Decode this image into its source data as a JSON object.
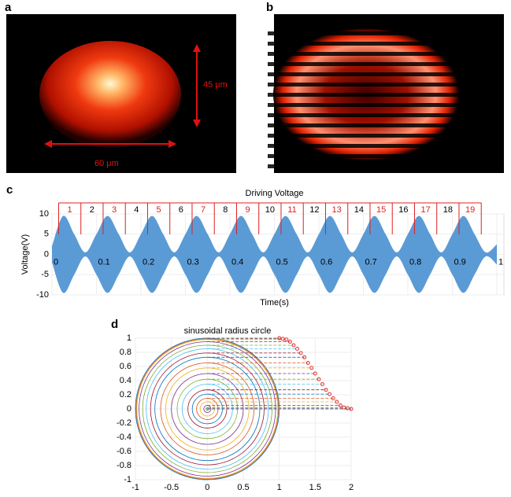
{
  "panels": {
    "a": {
      "label": "a",
      "height_label": "45 μm",
      "width_label": "60 μm"
    },
    "b": {
      "label": "b"
    }
  },
  "chart_data": [
    {
      "panel": "c",
      "type": "area",
      "title": "Driving Voltage",
      "xlabel": "Time(s)",
      "ylabel": "Voltage(V)",
      "x": [
        0,
        0.025,
        0.05,
        0.075,
        0.1,
        0.125,
        0.15,
        0.175,
        0.2,
        0.225,
        0.25,
        0.275,
        0.3,
        0.325,
        0.35,
        0.375,
        0.4,
        0.425,
        0.45,
        0.475,
        0.5,
        0.525,
        0.55,
        0.575,
        0.6,
        0.625,
        0.65,
        0.675,
        0.7,
        0.725,
        0.75,
        0.775,
        0.8,
        0.825,
        0.85,
        0.875,
        0.9,
        0.925,
        0.95,
        0.975,
        1
      ],
      "values": [
        2,
        9.5,
        5,
        0.5,
        5,
        9.5,
        5,
        0.5,
        5,
        9.5,
        5,
        0.5,
        5,
        9.5,
        5,
        0.5,
        5,
        9.5,
        5,
        0.5,
        5,
        9.5,
        5,
        0.5,
        5,
        9.5,
        5,
        0.5,
        5,
        9.5,
        5,
        0.5,
        5,
        9.5,
        5,
        0.5,
        5,
        9.5,
        5,
        0.5,
        2.5
      ],
      "color": "#5b9bd5",
      "xlim": [
        0,
        1
      ],
      "ylim": [
        -10,
        10
      ],
      "xticks": [
        0,
        0.1,
        0.2,
        0.3,
        0.4,
        0.5,
        0.6,
        0.7,
        0.8,
        0.9,
        1
      ],
      "yticks": [
        10,
        5,
        0,
        -5,
        -10
      ],
      "grid": true,
      "pulse_labels": [
        "1",
        "2",
        "3",
        "4",
        "5",
        "6",
        "7",
        "8",
        "9",
        "10",
        "11",
        "12",
        "13",
        "14",
        "15",
        "16",
        "17",
        "18",
        "19"
      ],
      "pulse_edges": [
        0.015,
        0.065,
        0.115,
        0.165,
        0.215,
        0.265,
        0.315,
        0.365,
        0.415,
        0.465,
        0.515,
        0.565,
        0.615,
        0.665,
        0.715,
        0.765,
        0.815,
        0.865,
        0.915,
        0.965
      ],
      "pulse_colors": [
        "#e02020",
        "#000000"
      ],
      "bracket_color": "#e02020"
    },
    {
      "panel": "d",
      "type": "circles",
      "title": "sinusoidal radius circle",
      "x": [
        1,
        1.05,
        1.1,
        1.15,
        1.2,
        1.25,
        1.3,
        1.35,
        1.4,
        1.45,
        1.5,
        1.55,
        1.6,
        1.65,
        1.7,
        1.75,
        1.8,
        1.85,
        1.9,
        1.95,
        2
      ],
      "y": [
        1,
        0.99,
        0.98,
        0.95,
        0.9,
        0.85,
        0.79,
        0.73,
        0.65,
        0.58,
        0.5,
        0.42,
        0.35,
        0.27,
        0.21,
        0.15,
        0.1,
        0.05,
        0.02,
        0.01,
        0
      ],
      "xlim": [
        -1,
        2
      ],
      "ylim": [
        -1,
        1
      ],
      "xticks": [
        -1,
        -0.5,
        0,
        0.5,
        1,
        1.5,
        2
      ],
      "yticks": [
        1,
        0.8,
        0.6,
        0.4,
        0.2,
        0,
        -0.2,
        -0.4,
        -0.6,
        -0.8,
        -1
      ],
      "grid": true,
      "marker_color": "#e03030",
      "colors": [
        "#0072bd",
        "#d95319",
        "#edb120",
        "#7e2f8e",
        "#77ac30",
        "#4dbeee",
        "#a2142f"
      ]
    }
  ]
}
